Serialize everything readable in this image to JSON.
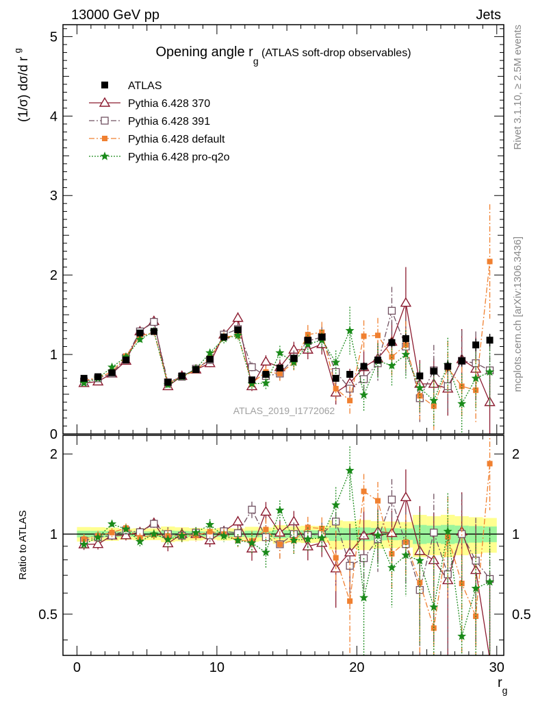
{
  "header": {
    "energy": "13000 GeV pp",
    "process": "Jets",
    "right_top": "Rivet 3.1.10, ≥ 2.5M events",
    "right_bottom": "mcplots.cern.ch [arXiv:1306.3436]",
    "analysis_id": "ATLAS_2019_I1772062"
  },
  "chart_data": [
    {
      "type": "scatter",
      "panel": "main",
      "title": "Opening angle r",
      "title_sub": "g",
      "title_suffix": " (ATLAS soft-drop observables)",
      "ylabel": "(1/σ) dσ/d r",
      "ylabel_sub": "g",
      "xlim": [
        -1,
        30.5
      ],
      "ylim": [
        0,
        5.15
      ],
      "y_ticks": [
        0,
        1,
        2,
        3,
        4,
        5
      ],
      "y_tick_labels": [
        "0",
        "1",
        "2",
        "3",
        "4",
        "5"
      ],
      "legend_position": "top-left",
      "x": [
        0.5,
        1.5,
        2.5,
        3.5,
        4.5,
        5.5,
        6.5,
        7.5,
        8.5,
        9.5,
        10.5,
        11.5,
        12.5,
        13.5,
        14.5,
        15.5,
        16.5,
        17.5,
        18.5,
        19.5,
        20.5,
        21.5,
        22.5,
        23.5,
        24.5,
        25.5,
        26.5,
        27.5,
        28.5,
        29.5
      ],
      "series": [
        {
          "name": "ATLAS",
          "color": "#000000",
          "marker": "square-filled",
          "line": "none",
          "values": [
            0.7,
            0.72,
            0.77,
            0.93,
            1.27,
            1.29,
            0.65,
            0.73,
            0.81,
            0.94,
            1.22,
            1.31,
            0.68,
            0.75,
            0.83,
            0.95,
            1.18,
            1.22,
            0.7,
            0.75,
            0.85,
            0.93,
            1.15,
            1.2,
            0.73,
            0.79,
            0.85,
            0.92,
            1.12,
            1.18
          ],
          "errors": [
            0.02,
            0.02,
            0.02,
            0.02,
            0.03,
            0.03,
            0.02,
            0.02,
            0.02,
            0.02,
            0.03,
            0.03,
            0.02,
            0.02,
            0.03,
            0.03,
            0.04,
            0.04,
            0.04,
            0.04,
            0.05,
            0.05,
            0.06,
            0.06,
            0.06,
            0.06,
            0.07,
            0.07,
            0.08,
            0.08
          ]
        },
        {
          "name": "Pythia 6.428 370",
          "color": "#8b1a2f",
          "marker": "triangle-open",
          "line": "solid",
          "values": [
            0.64,
            0.66,
            0.76,
            0.92,
            1.29,
            1.42,
            0.6,
            0.73,
            0.81,
            0.89,
            1.25,
            1.46,
            0.6,
            0.91,
            0.84,
            1.06,
            1.06,
            1.13,
            0.52,
            0.64,
            0.84,
            0.95,
            1.16,
            1.65,
            0.63,
            0.63,
            0.57,
            0.94,
            0.82,
            0.4
          ],
          "errors": [
            0.03,
            0.03,
            0.03,
            0.04,
            0.05,
            0.05,
            0.04,
            0.04,
            0.04,
            0.05,
            0.06,
            0.07,
            0.06,
            0.08,
            0.09,
            0.1,
            0.12,
            0.13,
            0.15,
            0.18,
            0.2,
            0.22,
            0.25,
            0.45,
            0.3,
            0.32,
            0.34,
            0.38,
            0.4,
            0.45
          ]
        },
        {
          "name": "Pythia 6.428 391",
          "color": "#705060",
          "marker": "square-open",
          "line": "dashdot",
          "values": [
            0.66,
            0.7,
            0.76,
            0.96,
            1.29,
            1.41,
            0.65,
            0.72,
            0.82,
            0.93,
            1.25,
            1.32,
            0.84,
            0.73,
            0.76,
            0.95,
            1.17,
            1.22,
            0.78,
            0.57,
            0.69,
            0.89,
            1.55,
            1.1,
            0.45,
            0.8,
            0.6,
            0.92,
            0.89,
            0.8
          ],
          "errors": [
            0.03,
            0.03,
            0.03,
            0.04,
            0.05,
            0.05,
            0.04,
            0.04,
            0.04,
            0.05,
            0.06,
            0.07,
            0.06,
            0.08,
            0.09,
            0.1,
            0.12,
            0.13,
            0.15,
            0.18,
            0.2,
            0.22,
            0.3,
            0.35,
            0.3,
            0.32,
            0.34,
            0.38,
            0.4,
            0.45
          ]
        },
        {
          "name": "Pythia 6.428 default",
          "color": "#f08030",
          "marker": "square-filled-small",
          "line": "dashdot",
          "values": [
            0.67,
            0.71,
            0.78,
            0.98,
            1.23,
            1.28,
            0.64,
            0.72,
            0.8,
            0.96,
            1.22,
            1.24,
            0.64,
            0.78,
            0.76,
            0.9,
            1.25,
            1.28,
            0.57,
            0.42,
            1.23,
            1.24,
            0.97,
            1.12,
            0.48,
            0.35,
            0.83,
            0.6,
            0.55,
            2.17
          ],
          "errors": [
            0.03,
            0.03,
            0.03,
            0.04,
            0.05,
            0.05,
            0.04,
            0.04,
            0.04,
            0.05,
            0.06,
            0.07,
            0.06,
            0.08,
            0.09,
            0.1,
            0.12,
            0.13,
            0.15,
            0.18,
            0.2,
            0.22,
            0.25,
            0.3,
            0.3,
            0.32,
            0.34,
            0.38,
            0.4,
            0.72
          ]
        },
        {
          "name": "Pythia 6.428 pro-q2o",
          "color": "#1a8a1a",
          "marker": "star",
          "line": "dotted",
          "values": [
            0.64,
            0.7,
            0.84,
            0.97,
            1.19,
            1.29,
            0.62,
            0.72,
            0.82,
            1.02,
            1.2,
            1.24,
            0.63,
            0.64,
            1.02,
            0.9,
            1.13,
            1.18,
            0.9,
            1.3,
            0.49,
            0.92,
            0.86,
            1.0,
            0.58,
            0.42,
            0.87,
            0.38,
            0.7,
            0.78
          ],
          "errors": [
            0.03,
            0.03,
            0.03,
            0.04,
            0.05,
            0.05,
            0.04,
            0.04,
            0.04,
            0.05,
            0.06,
            0.07,
            0.06,
            0.08,
            0.09,
            0.1,
            0.12,
            0.13,
            0.15,
            0.3,
            0.2,
            0.22,
            0.25,
            0.3,
            0.3,
            0.32,
            0.34,
            0.38,
            0.4,
            0.45
          ]
        }
      ]
    },
    {
      "type": "scatter",
      "panel": "ratio",
      "ylabel": "Ratio to ATLAS",
      "xlabel": "r",
      "xlabel_sub": "g",
      "xlim": [
        -1,
        30.5
      ],
      "ylim": [
        0.35,
        2.35
      ],
      "x_ticks": [
        0,
        10,
        20,
        30
      ],
      "x_tick_labels": [
        "0",
        "10",
        "20",
        "30"
      ],
      "y_ticks": [
        0.5,
        1,
        2
      ],
      "y_tick_labels": [
        "0.5",
        "1",
        "2"
      ],
      "reference_line": 1.0,
      "band_inner_color": "#9cf59c",
      "band_outer_color": "#ffff90"
    }
  ]
}
